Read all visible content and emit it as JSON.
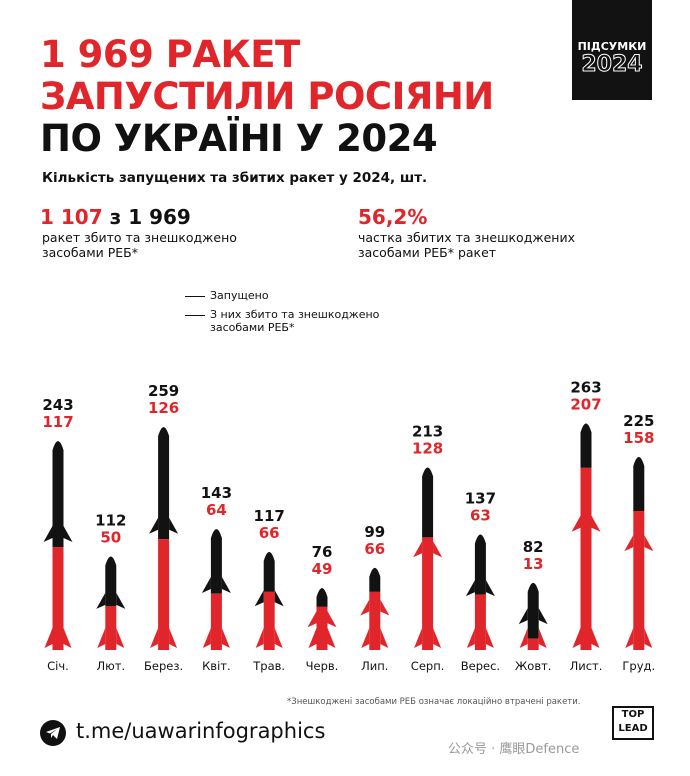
{
  "badge": {
    "line1": "ПІДСУМКИ",
    "line2": "2024"
  },
  "title": {
    "line1": "1 969 РАКЕТ",
    "line2": "ЗАПУСТИЛИ РОСІЯНИ",
    "line3": "ПО УКРАЇНІ У 2024"
  },
  "subtitle": "Кількість запущених та збитих ракет у 2024, шт.",
  "stats": {
    "left_intercepted": "1 107",
    "left_mid": " з ",
    "left_total": "1 969",
    "left_caption_1": "ракет збито та знешкоджено",
    "left_caption_2": "засобами РЕБ*",
    "right_value": "56,2%",
    "right_caption_1": "частка збитих та знешкоджених",
    "right_caption_2": "засобами РЕБ* ракет"
  },
  "legend": {
    "launched": "Запущено",
    "intercepted_1": "З них збито та знешкоджено",
    "intercepted_2": "засобами РЕБ*"
  },
  "colors": {
    "red": "#e0262b",
    "black": "#121212"
  },
  "chart_data": {
    "type": "bar",
    "categories": [
      "Січ.",
      "Лют.",
      "Берез.",
      "Квіт.",
      "Трав.",
      "Черв.",
      "Лип.",
      "Серп.",
      "Верес.",
      "Жовт.",
      "Лист.",
      "Груд."
    ],
    "series": [
      {
        "name": "Запущено",
        "values": [
          243,
          112,
          259,
          143,
          117,
          76,
          99,
          213,
          137,
          82,
          263,
          225
        ]
      },
      {
        "name": "З них збито та знешкоджено засобами РЕБ*",
        "values": [
          117,
          50,
          126,
          64,
          66,
          49,
          66,
          128,
          63,
          13,
          207,
          158
        ]
      }
    ]
  },
  "footnote": "*Знешкоджені засобами РЕБ означає локаційно втрачені ракети.",
  "footer": {
    "link": "t.me/uawarinfographics",
    "logo_1": "TOP",
    "logo_2": "LEAD",
    "watermark": "公众号 · 鹰眼Defence"
  }
}
